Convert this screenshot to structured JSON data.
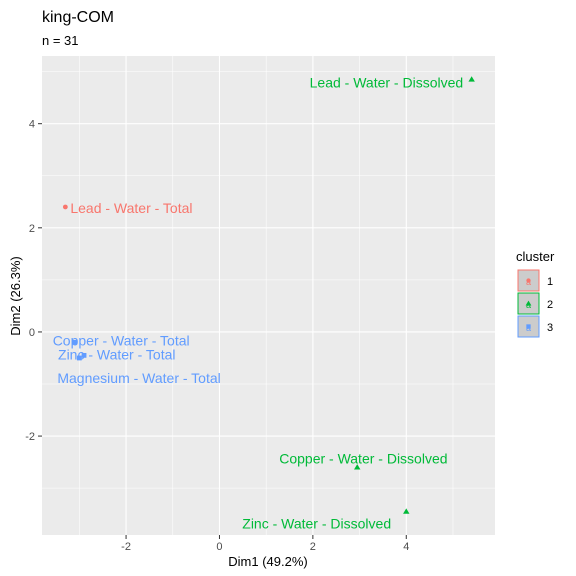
{
  "chart_data": {
    "type": "scatter",
    "title": "king-COM",
    "subtitle": "n = 31",
    "xlabel": "Dim1 (49.2%)",
    "ylabel": "Dim2 (26.3%)",
    "xlim": [
      -3.8,
      5.9
    ],
    "ylim": [
      -3.9,
      5.3
    ],
    "x_ticks": [
      -2,
      0,
      2,
      4
    ],
    "y_ticks": [
      -2,
      0,
      2,
      4
    ],
    "x_tick_labels": [
      "-2",
      "0",
      "2",
      "4"
    ],
    "y_tick_labels": [
      "-2",
      "0",
      "2",
      "4"
    ],
    "grid": true,
    "legend": {
      "title": "cluster",
      "position": "right",
      "entries": [
        {
          "label": "1",
          "color": "#F8766D",
          "shape": "circle"
        },
        {
          "label": "2",
          "color": "#00BA38",
          "shape": "triangle"
        },
        {
          "label": "3",
          "color": "#619CFF",
          "shape": "square"
        }
      ]
    },
    "points": [
      {
        "label": "Lead - Water - Dissolved",
        "x": 5.4,
        "y": 4.85,
        "cluster": 2
      },
      {
        "label": "Lead - Water - Total",
        "x": -3.3,
        "y": 2.4,
        "cluster": 1
      },
      {
        "label": "Copper - Water - Total",
        "x": -3.1,
        "y": -0.2,
        "cluster": 3
      },
      {
        "label": "Zinc - Water - Total",
        "x": -2.9,
        "y": -0.45,
        "cluster": 3
      },
      {
        "label": "Magnesium - Water - Total",
        "x": -3.0,
        "y": -0.5,
        "cluster": 3
      },
      {
        "label": "Copper - Water - Dissolved",
        "x": 2.95,
        "y": -2.6,
        "cluster": 2
      },
      {
        "label": "Zinc - Water - Dissolved",
        "x": 4.0,
        "y": -3.45,
        "cluster": 2
      }
    ]
  }
}
